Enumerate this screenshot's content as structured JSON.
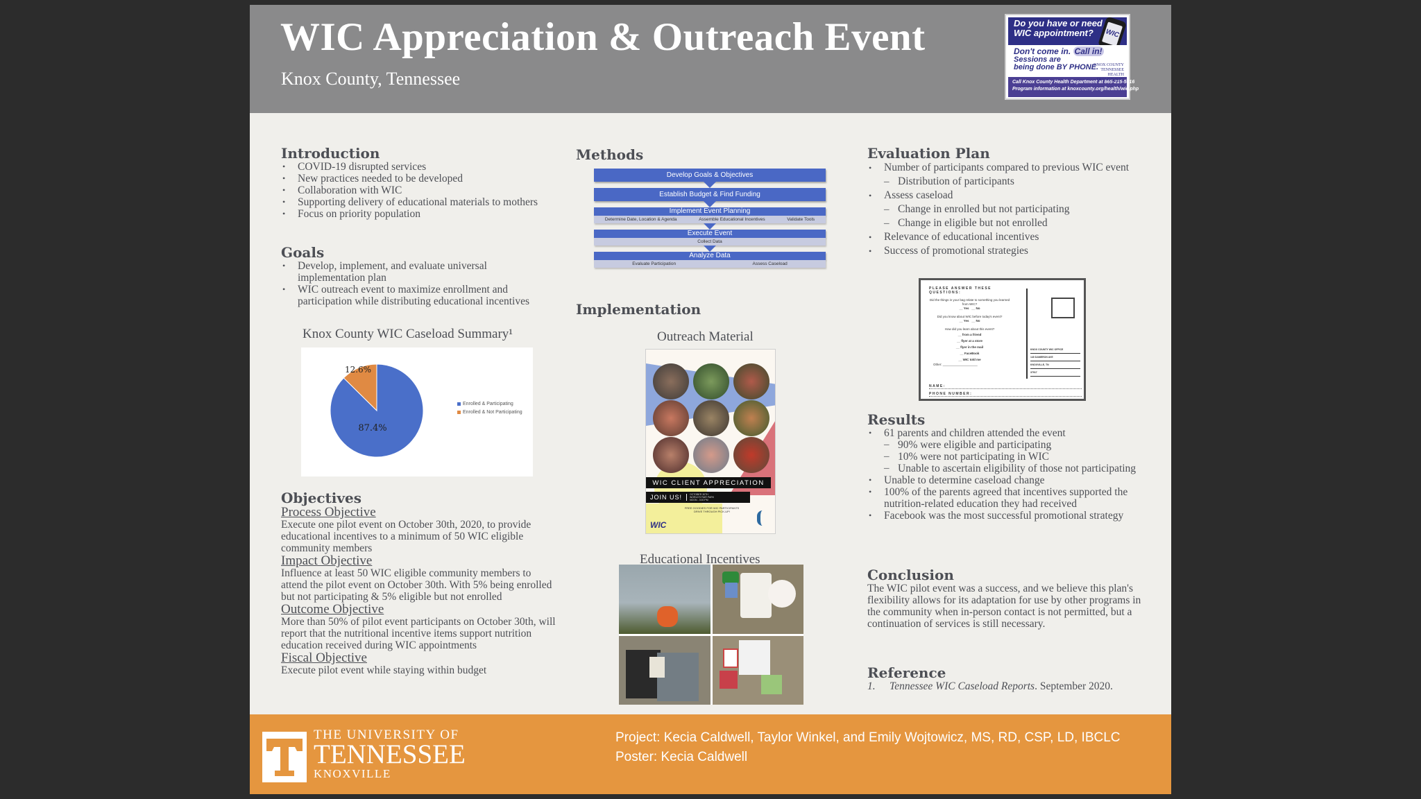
{
  "header": {
    "title": "WIC Appreciation & Outreach Event",
    "subtitle": "Knox County, Tennessee",
    "ad": {
      "line1": "Do you have or need a",
      "line2": "WIC appointment?",
      "dont_come": "Don't come in.",
      "call_in": "Call in!",
      "sessions1": "Sessions are",
      "sessions2": "being done BY PHONE.",
      "phone_logo": "WIC",
      "org_logo": "KNOX COUNTY TENNESSEE HEALTH DEPARTMENT",
      "contact1": "Call Knox County Health Department at 865-215-5016",
      "contact2": "Program information at knoxcounty.org/health/wic.php"
    }
  },
  "introduction": {
    "heading": "Introduction",
    "items": [
      "COVID-19 disrupted services",
      "New practices needed to be developed",
      "Collaboration with WIC",
      "Supporting delivery of educational materials to mothers",
      "Focus on priority population"
    ]
  },
  "goals": {
    "heading": "Goals",
    "items": [
      "Develop, implement, and evaluate universal implementation plan",
      "WIC outreach event to maximize enrollment and participation while distributing educational incentives"
    ]
  },
  "chart_data": {
    "type": "pie",
    "title": "Knox County WIC Caseload Summary¹",
    "categories": [
      "Enrolled & Participating",
      "Enrolled & Not Participating"
    ],
    "values": [
      87.4,
      12.6
    ],
    "labels": [
      "87.4%",
      "12.6%"
    ],
    "colors": [
      "#4a6fc9",
      "#e08a43"
    ],
    "legend_position": "right"
  },
  "objectives": {
    "heading": "Objectives",
    "items": [
      {
        "title": "Process Objective",
        "text": "Execute one pilot event on October 30th, 2020, to provide educational incentives to a minimum of 50 WIC eligible community members"
      },
      {
        "title": "Impact Objective",
        "text": "Influence at least 50 WIC eligible community members to attend the pilot event on October 30th. With 5% being enrolled but not participating & 5% eligible but not enrolled"
      },
      {
        "title": "Outcome Objective",
        "text": "More than 50% of pilot event participants on October 30th, will report that the nutritional incentive items support nutrition education received during WIC appointments"
      },
      {
        "title": "Fiscal Objective",
        "text": "Execute pilot event while staying within budget"
      }
    ]
  },
  "methods": {
    "heading": "Methods",
    "steps": [
      {
        "label": "Develop Goals & Objectives",
        "subs": []
      },
      {
        "label": "Establish Budget & Find Funding",
        "subs": []
      },
      {
        "label": "Implement Event Planning",
        "subs": [
          "Determine Date, Location & Agenda",
          "Assemble Educational Incentives",
          "Validate Tools"
        ]
      },
      {
        "label": "Execute Event",
        "subs": [
          "Collect Data"
        ]
      },
      {
        "label": "Analyze Data",
        "subs": [
          "Evaluate Participation",
          "Assess Caseload"
        ]
      }
    ]
  },
  "implementation": {
    "heading": "Implementation",
    "outreach_title": "Outreach Material",
    "flyer": {
      "banner": "WIC CLIENT APPRECIATION",
      "join": "JOIN US!",
      "details1": "OCTOBER 30TH",
      "details2": "WORLD'S FAIR PARK",
      "details3": "NOON - 3:00 PM",
      "note1": "FREE GOODIES FOR WIC PARTICIPANTS",
      "note2": "DRIVE THROUGH PICK-UP!",
      "logo": "WIC"
    },
    "incentives_title": "Educational Incentives"
  },
  "evaluation": {
    "heading": "Evaluation Plan",
    "items": [
      {
        "text": "Number of participants compared to previous WIC event",
        "level": 1
      },
      {
        "text": "Distribution of participants",
        "level": 2
      },
      {
        "text": "Assess caseload",
        "level": 1
      },
      {
        "text": "Change in enrolled but not participating",
        "level": 2
      },
      {
        "text": "Change in eligible but not enrolled",
        "level": 2
      },
      {
        "text": "Relevance of educational incentives",
        "level": 1
      },
      {
        "text": "Success of promotional strategies",
        "level": 1
      }
    ],
    "postcard": {
      "heading": "PLEASE ANSWER THESE QUESTIONS:",
      "q1": "Did the things in your bag relate to something you learned from WIC?",
      "q2": "Did you know about WIC before today's event?",
      "yes": "__ Yes",
      "no": "__ No",
      "q3": "How did you learn about this event?",
      "options": [
        "__ from a friend",
        "__ flyer at a store",
        "__ flyer in the mail",
        "__ FaceBook",
        "__ WIC told me"
      ],
      "other": "Other: ____________________",
      "address": [
        "KNOX COUNTY WIC OFFICE",
        "140 DAMERON AVE",
        "KNOXVILLE, TN",
        "37917"
      ],
      "name": "NAME:",
      "phone": "PHONE NUMBER:"
    }
  },
  "results": {
    "heading": "Results",
    "items": [
      {
        "text": "61 parents and children attended the event",
        "level": 1
      },
      {
        "text": "90% were eligible and participating",
        "level": 2
      },
      {
        "text": "10% were not participating in WIC",
        "level": 2
      },
      {
        "text": "Unable to ascertain eligibility of those not participating",
        "level": 2
      },
      {
        "text": "Unable to determine caseload change",
        "level": 1
      },
      {
        "text": "100% of the parents agreed that incentives supported the nutrition-related education they had received",
        "level": 1
      },
      {
        "text": "Facebook was the most successful promotional strategy",
        "level": 1
      }
    ]
  },
  "conclusion": {
    "heading": "Conclusion",
    "text": "The WIC pilot event was a success, and we believe this plan's flexibility allows for its adaptation for use by other programs in the community when in-person contact is not permitted, but a continuation of services is still necessary."
  },
  "reference": {
    "heading": "Reference",
    "number": "1.",
    "title": "Tennessee WIC Caseload Reports",
    "rest": ". September 2020."
  },
  "footer": {
    "univ_line1": "THE UNIVERSITY OF",
    "univ_line2": "TENNESSEE",
    "univ_line3": "KNOXVILLE",
    "logo_letter": "T",
    "project": "Project: Kecia Caldwell, Taylor Winkel, and Emily Wojtowicz, MS, RD, CSP, LD, IBCLC",
    "poster": "Poster: Kecia Caldwell"
  },
  "colors": {
    "header_bg": "#8a8a8b",
    "poster_bg": "#f0efeb",
    "footer_bg": "#e5963f",
    "flow_blue": "#4a68c5",
    "text": "#4d4f55"
  }
}
